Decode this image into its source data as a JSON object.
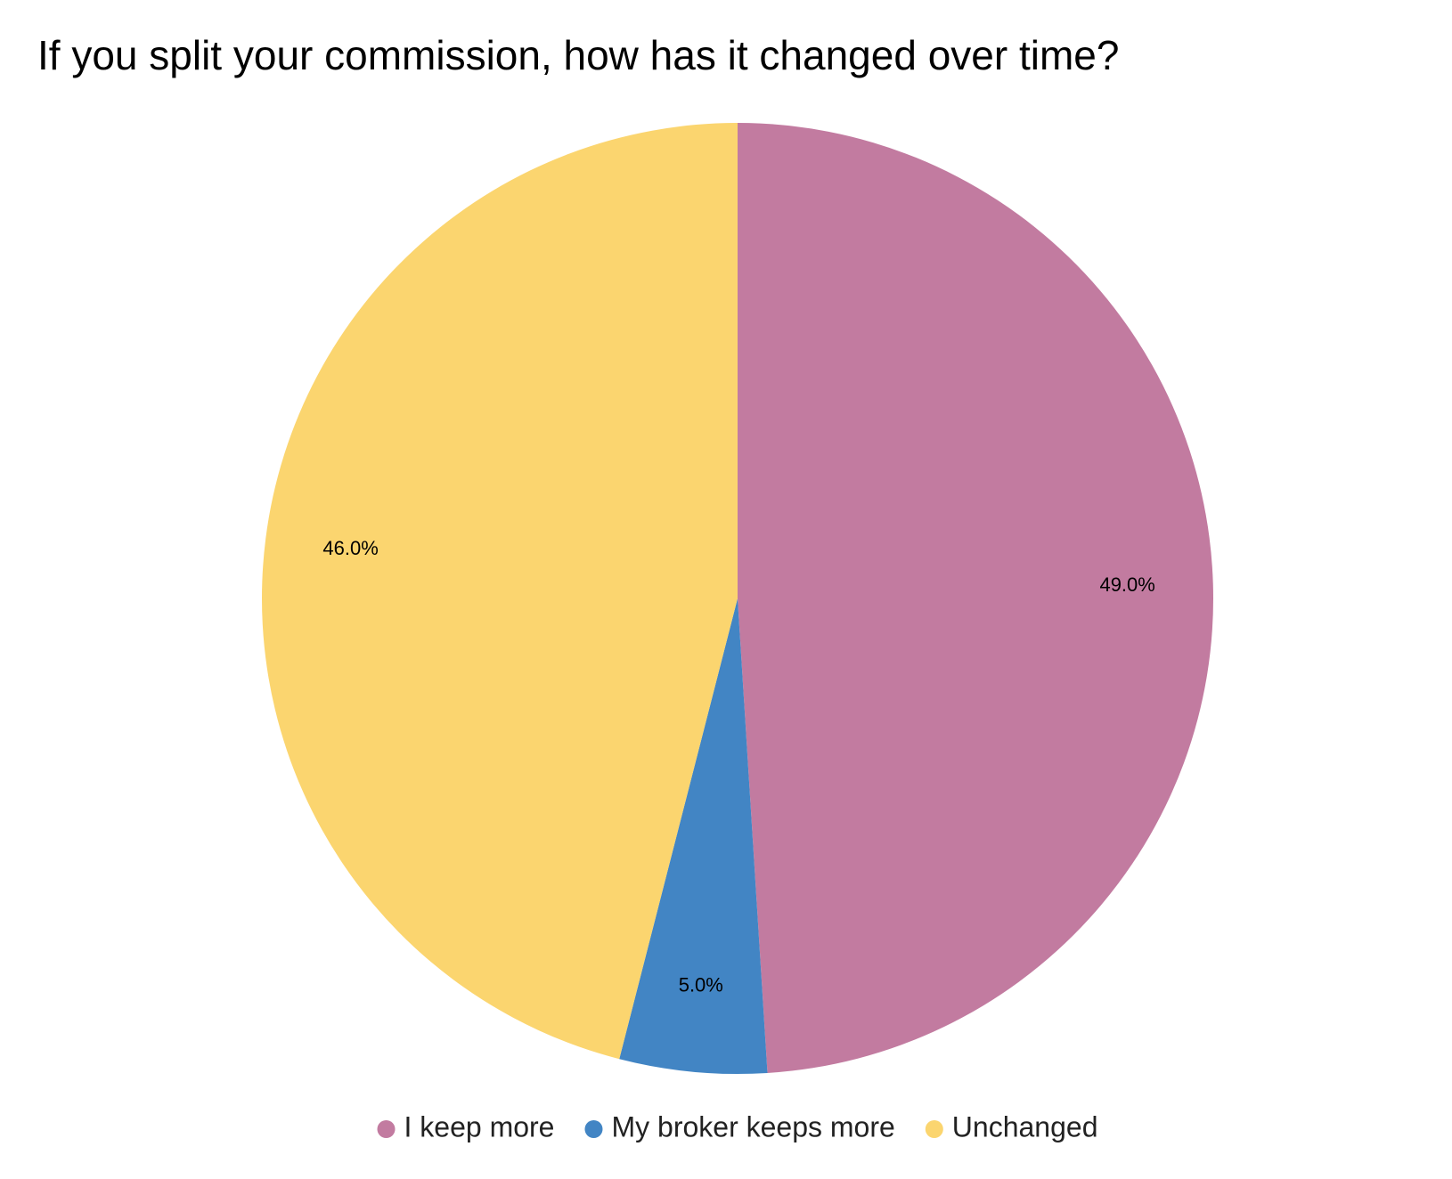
{
  "chart_data": {
    "type": "pie",
    "title": "If you split your commission, how has it changed over time?",
    "categories": [
      "I keep more",
      "My broker keeps more",
      "Unchanged"
    ],
    "values": [
      49,
      5,
      46
    ],
    "value_labels": [
      "49.0%",
      "5.0%",
      "46.0%"
    ],
    "colors": [
      "#c27ba0",
      "#4285c4",
      "#fbd56f"
    ],
    "legend": "bottom"
  }
}
